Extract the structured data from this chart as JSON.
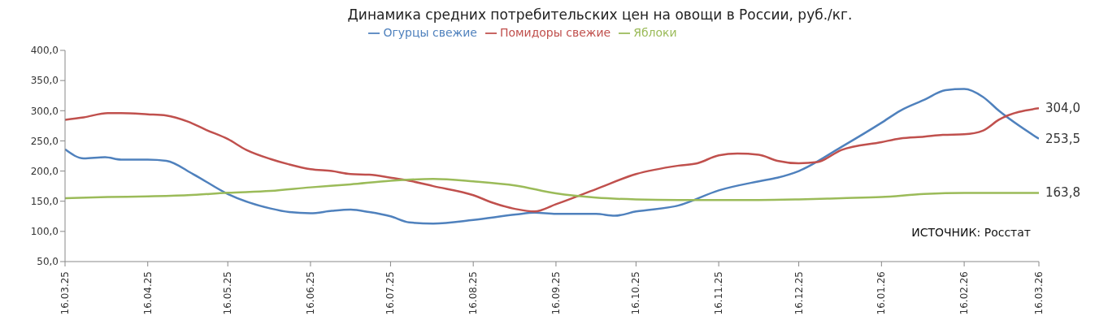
{
  "chart_data": {
    "type": "line",
    "title": "Динамика средних потребительских цен на овощи в России, руб./кг.",
    "annotations": [
      "ИСТОЧНИК: Росстат"
    ],
    "legend": "top",
    "grid": false,
    "marker": "none",
    "line_style": "solid",
    "xlim": [
      "2025-03-16",
      "2026-03-16"
    ],
    "xticks": [
      {
        "value": "2025-03-16",
        "label": "16.03.25"
      },
      {
        "value": "2025-04-16",
        "label": "16.04.25"
      },
      {
        "value": "2025-05-16",
        "label": "16.05.25"
      },
      {
        "value": "2025-06-16",
        "label": "16.06.25"
      },
      {
        "value": "2025-07-16",
        "label": "16.07.25"
      },
      {
        "value": "2025-08-16",
        "label": "16.08.25"
      },
      {
        "value": "2025-09-16",
        "label": "16.09.25"
      },
      {
        "value": "2025-10-16",
        "label": "16.10.25"
      },
      {
        "value": "2025-11-16",
        "label": "16.11.25"
      },
      {
        "value": "2025-12-16",
        "label": "16.12.25"
      },
      {
        "value": "2026-01-16",
        "label": "16.01.26"
      },
      {
        "value": "2026-02-16",
        "label": "16.02.26"
      },
      {
        "value": "2026-03-16",
        "label": "16.03.26"
      }
    ],
    "ylim": [
      50,
      400
    ],
    "yticks": [
      {
        "value": 50,
        "label": "50,0"
      },
      {
        "value": 100,
        "label": "100,0"
      },
      {
        "value": 150,
        "label": "150,0"
      },
      {
        "value": 200,
        "label": "200,0"
      },
      {
        "value": 250,
        "label": "250,0"
      },
      {
        "value": 300,
        "label": "300,0"
      },
      {
        "value": 350,
        "label": "350,0"
      },
      {
        "value": 400,
        "label": "400,0"
      }
    ],
    "series": [
      {
        "name": "Огурцы свежие",
        "color": "#4f81bd",
        "x": [
          "2025-03-16",
          "2025-03-23",
          "2025-03-31",
          "2025-04-06",
          "2025-04-16",
          "2025-04-23",
          "2025-05-03",
          "2025-05-16",
          "2025-06-01",
          "2025-06-08",
          "2025-06-16",
          "2025-06-24",
          "2025-07-01",
          "2025-07-08",
          "2025-07-16",
          "2025-07-23",
          "2025-08-01",
          "2025-08-16",
          "2025-09-01",
          "2025-09-08",
          "2025-09-16",
          "2025-10-01",
          "2025-10-08",
          "2025-10-16",
          "2025-11-01",
          "2025-11-16",
          "2025-12-01",
          "2025-12-08",
          "2025-12-16",
          "2026-01-01",
          "2026-01-16",
          "2026-01-23",
          "2026-02-01",
          "2026-02-09",
          "2026-02-16",
          "2026-02-23",
          "2026-03-01",
          "2026-03-16"
        ],
        "values": [
          236,
          221,
          223,
          219,
          219,
          217,
          195,
          162,
          138,
          132,
          130,
          134,
          136,
          132,
          125,
          115,
          113,
          119,
          128,
          131,
          129,
          129,
          126,
          133,
          143,
          168,
          183,
          189,
          200,
          240,
          280,
          300,
          318,
          334,
          336,
          323,
          300,
          253.5
        ],
        "value_labels": [
          null,
          null,
          null,
          null,
          null,
          null,
          null,
          null,
          null,
          null,
          null,
          null,
          null,
          null,
          null,
          null,
          null,
          null,
          null,
          null,
          null,
          null,
          null,
          null,
          null,
          null,
          null,
          null,
          null,
          null,
          null,
          null,
          null,
          null,
          null,
          null,
          null,
          "253,5"
        ]
      },
      {
        "name": "Помидоры свежие",
        "color": "#c0504d",
        "x": [
          "2025-03-16",
          "2025-03-23",
          "2025-04-01",
          "2025-04-06",
          "2025-04-16",
          "2025-04-23",
          "2025-05-01",
          "2025-05-08",
          "2025-05-16",
          "2025-05-23",
          "2025-06-01",
          "2025-06-08",
          "2025-06-16",
          "2025-06-24",
          "2025-07-01",
          "2025-07-08",
          "2025-07-16",
          "2025-07-23",
          "2025-08-01",
          "2025-08-16",
          "2025-08-23",
          "2025-09-01",
          "2025-09-08",
          "2025-09-16",
          "2025-10-01",
          "2025-10-16",
          "2025-11-01",
          "2025-11-08",
          "2025-11-16",
          "2025-11-23",
          "2025-12-01",
          "2025-12-08",
          "2025-12-16",
          "2025-12-23",
          "2026-01-01",
          "2026-01-16",
          "2026-01-23",
          "2026-02-01",
          "2026-02-08",
          "2026-02-16",
          "2026-02-23",
          "2026-03-01",
          "2026-03-16"
        ],
        "values": [
          285,
          289,
          296,
          296,
          294,
          292,
          282,
          268,
          253,
          235,
          220,
          211,
          203,
          200,
          195,
          194,
          189,
          184,
          175,
          160,
          148,
          137,
          133,
          145,
          170,
          195,
          209,
          213,
          226,
          229,
          227,
          217,
          213,
          215,
          235,
          248,
          254,
          257,
          260,
          261,
          267,
          285,
          304
        ],
        "value_labels": [
          null,
          null,
          null,
          null,
          null,
          null,
          null,
          null,
          null,
          null,
          null,
          null,
          null,
          null,
          null,
          null,
          null,
          null,
          null,
          null,
          null,
          null,
          null,
          null,
          null,
          null,
          null,
          null,
          null,
          null,
          null,
          null,
          null,
          null,
          null,
          null,
          null,
          null,
          null,
          null,
          null,
          null,
          "304,0"
        ]
      },
      {
        "name": "Яблоки",
        "color": "#9bbb59",
        "x": [
          "2025-03-16",
          "2025-04-01",
          "2025-04-16",
          "2025-05-01",
          "2025-05-16",
          "2025-06-01",
          "2025-06-16",
          "2025-07-01",
          "2025-07-16",
          "2025-08-01",
          "2025-08-16",
          "2025-09-01",
          "2025-09-16",
          "2025-10-01",
          "2025-10-16",
          "2025-11-01",
          "2025-11-16",
          "2025-12-01",
          "2025-12-16",
          "2026-01-01",
          "2026-01-16",
          "2026-02-01",
          "2026-02-16",
          "2026-03-01",
          "2026-03-16"
        ],
        "values": [
          155,
          157,
          158,
          160,
          164,
          167,
          173,
          178,
          184,
          187,
          183,
          176,
          163,
          156,
          153,
          152,
          152,
          152,
          153,
          155,
          157,
          162,
          163.8,
          163.8,
          163.8
        ],
        "value_labels": [
          null,
          null,
          null,
          null,
          null,
          null,
          null,
          null,
          null,
          null,
          null,
          null,
          null,
          null,
          null,
          null,
          null,
          null,
          null,
          null,
          null,
          null,
          null,
          null,
          "163,8"
        ]
      }
    ]
  }
}
